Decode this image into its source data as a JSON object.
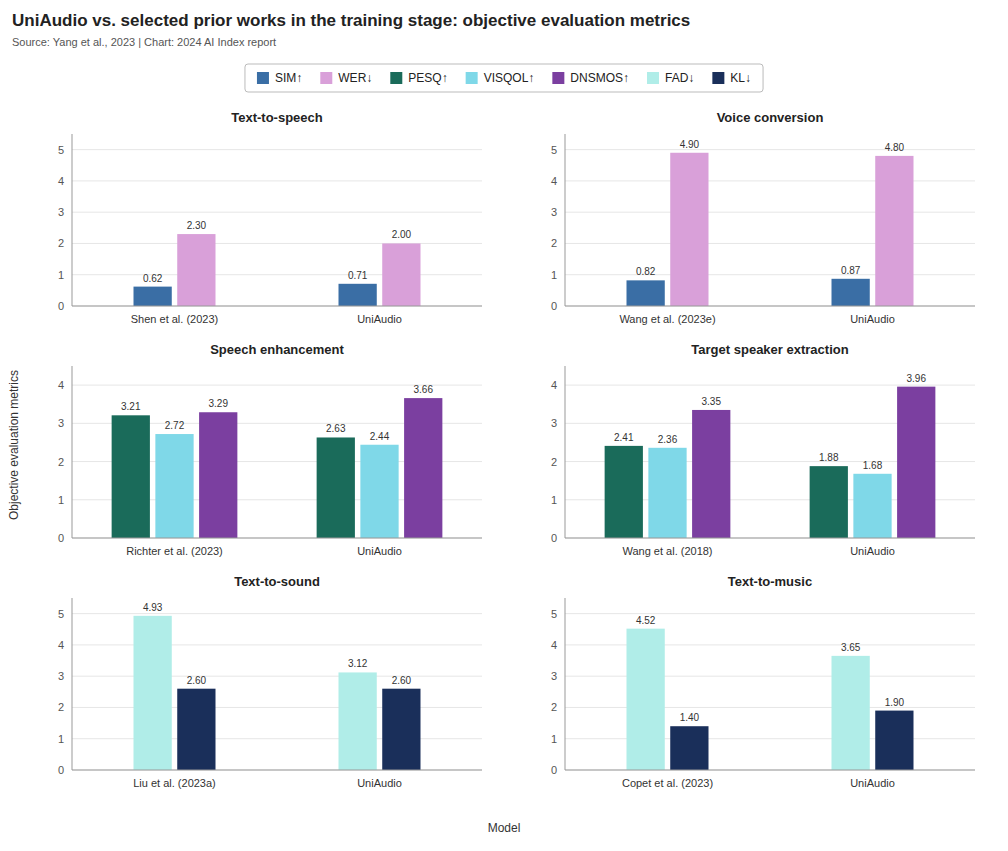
{
  "title": "UniAudio vs. selected prior works in the training stage: objective evaluation metrics",
  "subtitle": "Source: Yang et al., 2023 | Chart: 2024 AI Index report",
  "xlabel": "Model",
  "ylabel": "Objective evaluation metrics",
  "chart_data": [
    {
      "type": "bar",
      "title": "Text-to-speech",
      "categories": [
        "Shen et al. (2023)",
        "UniAudio"
      ],
      "series": [
        {
          "name": "SIM↑",
          "color": "#3a6ea5",
          "values": [
            0.62,
            0.71
          ],
          "value_labels": [
            "0.62",
            "0.71"
          ]
        },
        {
          "name": "WER↓",
          "color": "#d9a0d9",
          "values": [
            2.3,
            2.0
          ],
          "value_labels": [
            "2.30",
            "2.00"
          ]
        }
      ],
      "ylim": [
        0,
        5.5
      ],
      "yticks": [
        0,
        1,
        2,
        3,
        4,
        5
      ],
      "grid": true,
      "data_labels": true
    },
    {
      "type": "bar",
      "title": "Voice conversion",
      "categories": [
        "Wang et al. (2023e)",
        "UniAudio"
      ],
      "series": [
        {
          "name": "SIM↑",
          "color": "#3a6ea5",
          "values": [
            0.82,
            0.87
          ],
          "value_labels": [
            "0.82",
            "0.87"
          ]
        },
        {
          "name": "WER↓",
          "color": "#d9a0d9",
          "values": [
            4.9,
            4.8
          ],
          "value_labels": [
            "4.90",
            "4.80"
          ]
        }
      ],
      "ylim": [
        0,
        5.5
      ],
      "yticks": [
        0,
        1,
        2,
        3,
        4,
        5
      ],
      "grid": true,
      "data_labels": true
    },
    {
      "type": "bar",
      "title": "Speech enhancement",
      "categories": [
        "Richter et al. (2023)",
        "UniAudio"
      ],
      "series": [
        {
          "name": "PESQ↑",
          "color": "#1a6b5a",
          "values": [
            3.21,
            2.63
          ],
          "value_labels": [
            "3.21",
            "2.63"
          ]
        },
        {
          "name": "VISQOL↑",
          "color": "#7fd8e8",
          "values": [
            2.72,
            2.44
          ],
          "value_labels": [
            "2.72",
            "2.44"
          ]
        },
        {
          "name": "DNSMOS↑",
          "color": "#7b3fa0",
          "values": [
            3.29,
            3.66
          ],
          "value_labels": [
            "3.29",
            "3.66"
          ]
        }
      ],
      "ylim": [
        0,
        4.5
      ],
      "yticks": [
        0,
        1,
        2,
        3,
        4
      ],
      "grid": true,
      "data_labels": true
    },
    {
      "type": "bar",
      "title": "Target speaker extraction",
      "categories": [
        "Wang et al. (2018)",
        "UniAudio"
      ],
      "series": [
        {
          "name": "PESQ↑",
          "color": "#1a6b5a",
          "values": [
            2.41,
            1.88
          ],
          "value_labels": [
            "2.41",
            "1.88"
          ]
        },
        {
          "name": "VISQOL↑",
          "color": "#7fd8e8",
          "values": [
            2.36,
            1.68
          ],
          "value_labels": [
            "2.36",
            "1.68"
          ]
        },
        {
          "name": "DNSMOS↑",
          "color": "#7b3fa0",
          "values": [
            3.35,
            3.96
          ],
          "value_labels": [
            "3.35",
            "3.96"
          ]
        }
      ],
      "ylim": [
        0,
        4.5
      ],
      "yticks": [
        0,
        1,
        2,
        3,
        4
      ],
      "grid": true,
      "data_labels": true
    },
    {
      "type": "bar",
      "title": "Text-to-sound",
      "categories": [
        "Liu et al. (2023a)",
        "UniAudio"
      ],
      "series": [
        {
          "name": "FAD↓",
          "color": "#b0ede8",
          "values": [
            4.93,
            3.12
          ],
          "value_labels": [
            "4.93",
            "3.12"
          ]
        },
        {
          "name": "KL↓",
          "color": "#1a2f5a",
          "values": [
            2.6,
            2.6
          ],
          "value_labels": [
            "2.60",
            "2.60"
          ]
        }
      ],
      "ylim": [
        0,
        5.5
      ],
      "yticks": [
        0,
        1,
        2,
        3,
        4,
        5
      ],
      "grid": true,
      "data_labels": true
    },
    {
      "type": "bar",
      "title": "Text-to-music",
      "categories": [
        "Copet et al. (2023)",
        "UniAudio"
      ],
      "series": [
        {
          "name": "FAD↓",
          "color": "#b0ede8",
          "values": [
            4.52,
            3.65
          ],
          "value_labels": [
            "4.52",
            "3.65"
          ]
        },
        {
          "name": "KL↓",
          "color": "#1a2f5a",
          "values": [
            1.4,
            1.9
          ],
          "value_labels": [
            "1.40",
            "1.90"
          ]
        }
      ],
      "ylim": [
        0,
        5.5
      ],
      "yticks": [
        0,
        1,
        2,
        3,
        4,
        5
      ],
      "grid": true,
      "data_labels": true
    }
  ]
}
